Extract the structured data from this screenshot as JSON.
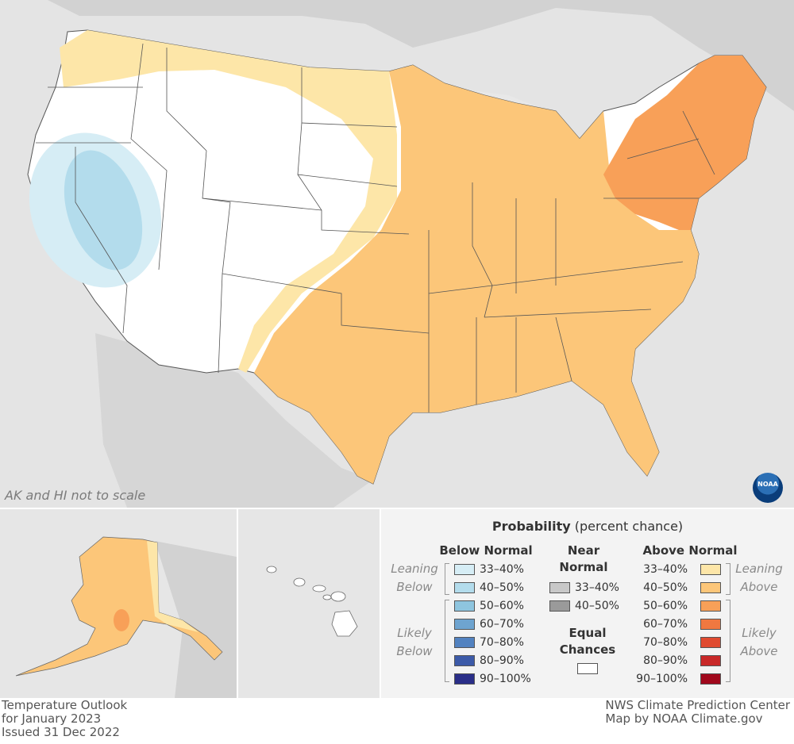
{
  "map_note": "AK and HI not to scale",
  "legend": {
    "title_bold": "Probability",
    "title_rest": "(percent chance)",
    "below_normal": {
      "heading": "Below Normal",
      "leaning_label": [
        "Leaning",
        "Below"
      ],
      "likely_label": [
        "Likely",
        "Below"
      ],
      "bins": [
        {
          "label": "33–40%",
          "color": "#d6edf5"
        },
        {
          "label": "40–50%",
          "color": "#b3dcec"
        },
        {
          "label": "50–60%",
          "color": "#8ec5df"
        },
        {
          "label": "60–70%",
          "color": "#6ea4d0"
        },
        {
          "label": "70–80%",
          "color": "#5282c0"
        },
        {
          "label": "80–90%",
          "color": "#3c5aa8"
        },
        {
          "label": "90–100%",
          "color": "#2a2e88"
        }
      ]
    },
    "near_normal": {
      "heading": [
        "Near",
        "Normal"
      ],
      "bins": [
        {
          "label": "33–40%",
          "color": "#c8c8c8"
        },
        {
          "label": "40–50%",
          "color": "#9a9a9a"
        }
      ]
    },
    "equal_chances": {
      "heading": [
        "Equal",
        "Chances"
      ],
      "color": "#ffffff"
    },
    "above_normal": {
      "heading": "Above Normal",
      "leaning_label": [
        "Leaning",
        "Above"
      ],
      "likely_label": [
        "Likely",
        "Above"
      ],
      "bins": [
        {
          "label": "33–40%",
          "color": "#fde6a8"
        },
        {
          "label": "40–50%",
          "color": "#fcc679"
        },
        {
          "label": "50–60%",
          "color": "#f8a058"
        },
        {
          "label": "60–70%",
          "color": "#f07840"
        },
        {
          "label": "70–80%",
          "color": "#e04a30"
        },
        {
          "label": "80–90%",
          "color": "#c82828"
        },
        {
          "label": "90–100%",
          "color": "#a0081c"
        }
      ]
    }
  },
  "footer_left": [
    "Temperature Outlook",
    "for January 2023",
    "Issued 31 Dec 2022"
  ],
  "footer_right": [
    "NWS Climate Prediction Center",
    "Map by NOAA Climate.gov"
  ],
  "logo_text": "NOAA",
  "colors": {
    "land_background": "#cfcfcf",
    "water": "#e8e8e8",
    "equal_chances": "#ffffff",
    "leaning_above": "#fde6a8",
    "above_40_50": "#fcc679",
    "above_50_60": "#f8a058",
    "below_33_40": "#d6edf5",
    "below_40_50": "#b3dcec"
  }
}
